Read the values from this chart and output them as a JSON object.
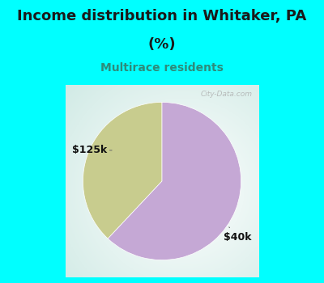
{
  "title_line1": "Income distribution in Whitaker, PA",
  "title_line2": "(%)",
  "subtitle": "Multirace residents",
  "title_color": "#1a1a1a",
  "subtitle_color": "#2e8b7a",
  "background_color": "#00FFFF",
  "slices": [
    {
      "label": "$125k",
      "value": 38,
      "color": "#c8cc8e"
    },
    {
      "label": "$40k",
      "value": 62,
      "color": "#c5a8d5"
    }
  ],
  "startangle": 90,
  "watermark": "City-Data.com",
  "label_fontsize": 9,
  "title_fontsize": 13
}
